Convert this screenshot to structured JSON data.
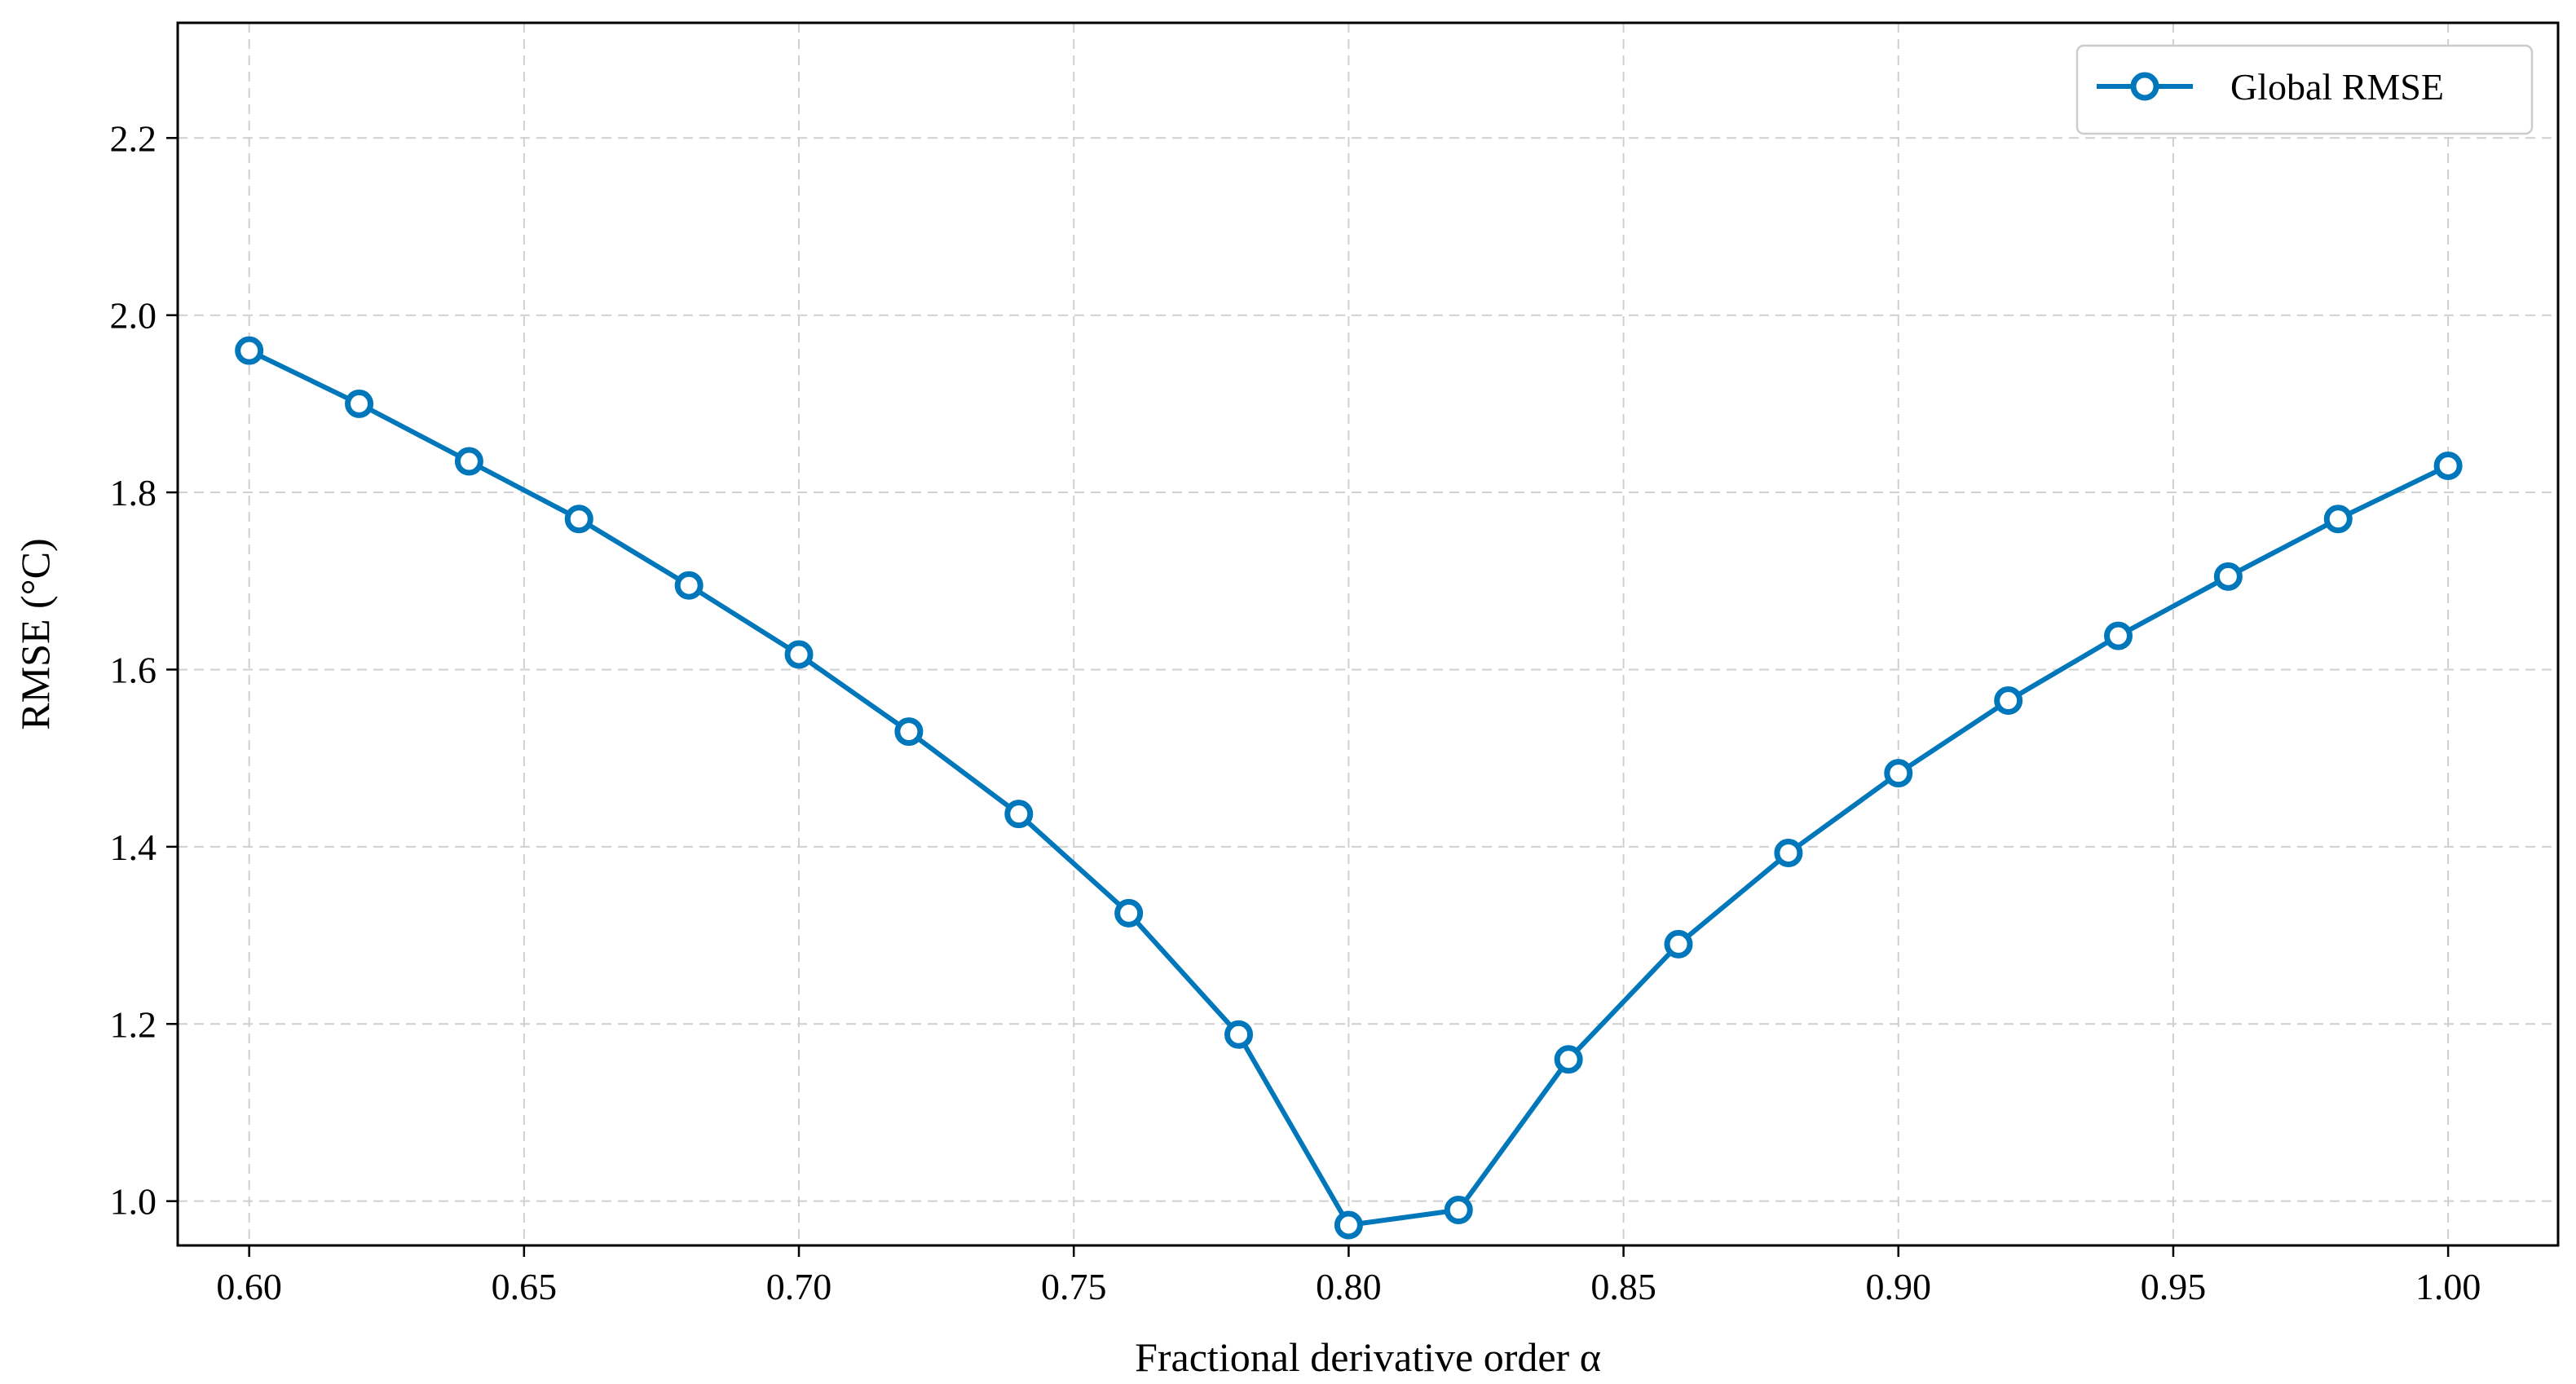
{
  "chart_data": {
    "type": "line",
    "xlabel": "Fractional derivative order α",
    "ylabel": "RMSE (°C)",
    "xlim": [
      0.587,
      1.02
    ],
    "ylim": [
      0.95,
      2.33
    ],
    "x_ticks": [
      "0.60",
      "0.65",
      "0.70",
      "0.75",
      "0.80",
      "0.85",
      "0.90",
      "0.95",
      "1.00"
    ],
    "y_ticks": [
      "1.0",
      "1.2",
      "1.4",
      "1.6",
      "1.8",
      "2.0",
      "2.2"
    ],
    "grid": true,
    "legend_position": "top-right",
    "series": [
      {
        "name": "Global RMSE",
        "color": "#0077bb",
        "marker": "circle-open",
        "x": [
          0.6,
          0.62,
          0.64,
          0.66,
          0.68,
          0.7,
          0.72,
          0.74,
          0.76,
          0.78,
          0.8,
          0.82,
          0.84,
          0.86,
          0.88,
          0.9,
          0.92,
          0.94,
          0.96,
          0.98,
          1.0
        ],
        "y": [
          1.96,
          1.9,
          1.835,
          1.77,
          1.695,
          1.617,
          1.53,
          1.437,
          1.325,
          1.188,
          0.973,
          0.99,
          1.16,
          1.29,
          1.393,
          1.483,
          1.565,
          1.638,
          1.705,
          1.77,
          1.83
        ]
      }
    ]
  }
}
